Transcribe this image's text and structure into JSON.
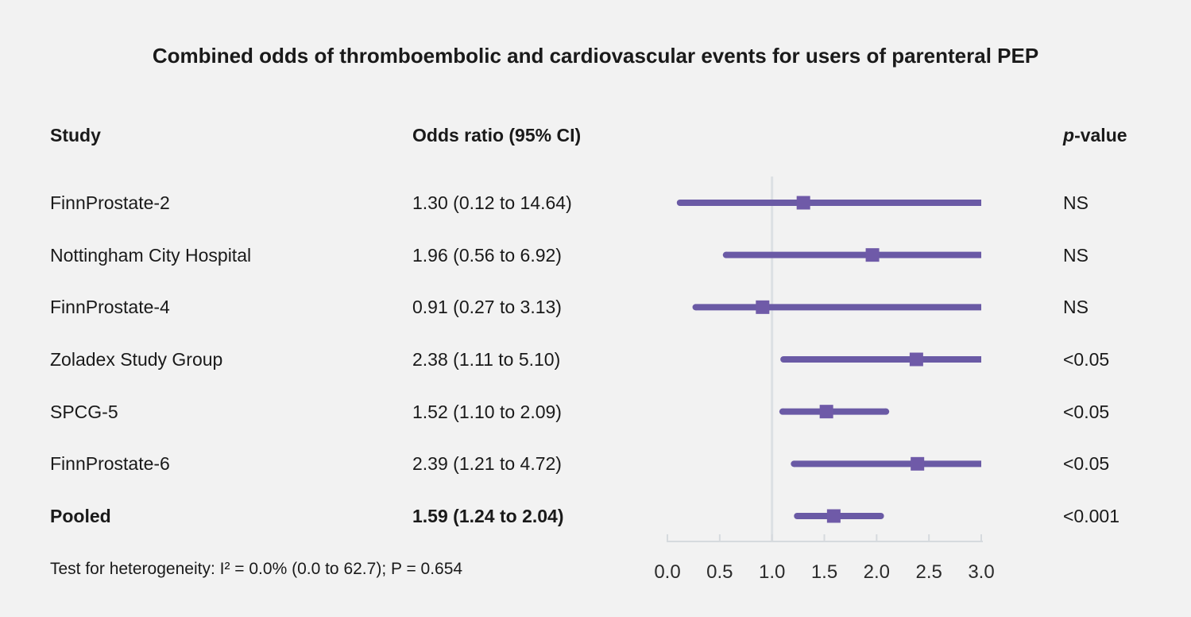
{
  "title": "Combined odds of thromboembolic and cardiovascular events for users of parenteral PEP",
  "columns": {
    "study": "Study",
    "odds_ratio": "Odds ratio (95% CI)",
    "p_italic": "p",
    "p_rest": "-value"
  },
  "rows": [
    {
      "study": "FinnProstate-2",
      "odds_ratio": "1.30 (0.12 to 14.64)",
      "p_value": "NS",
      "bold": false
    },
    {
      "study": "Nottingham City Hospital",
      "odds_ratio": "1.96 (0.56 to 6.92)",
      "p_value": "NS",
      "bold": false
    },
    {
      "study": "FinnProstate-4",
      "odds_ratio": "0.91 (0.27 to 3.13)",
      "p_value": "NS",
      "bold": false
    },
    {
      "study": "Zoladex Study Group",
      "odds_ratio": "2.38 (1.11 to 5.10)",
      "p_value": "<0.05",
      "bold": false
    },
    {
      "study": "SPCG-5",
      "odds_ratio": "1.52 (1.10 to 2.09)",
      "p_value": "<0.05",
      "bold": false
    },
    {
      "study": "FinnProstate-6",
      "odds_ratio": "2.39 (1.21 to 4.72)",
      "p_value": "<0.05",
      "bold": false
    },
    {
      "study": "Pooled",
      "odds_ratio": "1.59 (1.24 to 2.04)",
      "p_value": "<0.001",
      "bold": true
    }
  ],
  "footnote": "Test for heterogeneity: I² = 0.0% (0.0 to 62.7); P = 0.654",
  "chart_data": {
    "type": "forest",
    "title": "Combined odds of thromboembolic and cardiovascular events for users of parenteral PEP",
    "xlim": [
      0.0,
      3.0
    ],
    "reference_line": 1.0,
    "clip_max": 3.0,
    "axis_ticks": [
      0.0,
      0.5,
      1.0,
      1.5,
      2.0,
      2.5,
      3.0
    ],
    "axis_tick_labels": [
      "0.0",
      "0.5",
      "1.0",
      "1.5",
      "2.0",
      "2.5",
      "3.0"
    ],
    "points": [
      {
        "study": "FinnProstate-2",
        "or": 1.3,
        "ci_low": 0.12,
        "ci_high": 14.64,
        "p": "NS",
        "pooled": false
      },
      {
        "study": "Nottingham City Hospital",
        "or": 1.96,
        "ci_low": 0.56,
        "ci_high": 6.92,
        "p": "NS",
        "pooled": false
      },
      {
        "study": "FinnProstate-4",
        "or": 0.91,
        "ci_low": 0.27,
        "ci_high": 3.13,
        "p": "NS",
        "pooled": false
      },
      {
        "study": "Zoladex Study Group",
        "or": 2.38,
        "ci_low": 1.11,
        "ci_high": 5.1,
        "p": "<0.05",
        "pooled": false
      },
      {
        "study": "SPCG-5",
        "or": 1.52,
        "ci_low": 1.1,
        "ci_high": 2.09,
        "p": "<0.05",
        "pooled": false
      },
      {
        "study": "FinnProstate-6",
        "or": 2.39,
        "ci_low": 1.21,
        "ci_high": 4.72,
        "p": "<0.05",
        "pooled": false
      },
      {
        "study": "Pooled",
        "or": 1.59,
        "ci_low": 1.24,
        "ci_high": 2.04,
        "p": "<0.001",
        "pooled": true
      }
    ],
    "colors": {
      "line": "#6a5aa5",
      "marker": "#6f5aa8",
      "axis": "#d6dade",
      "reference": "#dce0e4",
      "tick_label": "#2b2b2b"
    }
  },
  "colors": {
    "background": "#f2f2f2",
    "text": "#1a1a1a"
  }
}
